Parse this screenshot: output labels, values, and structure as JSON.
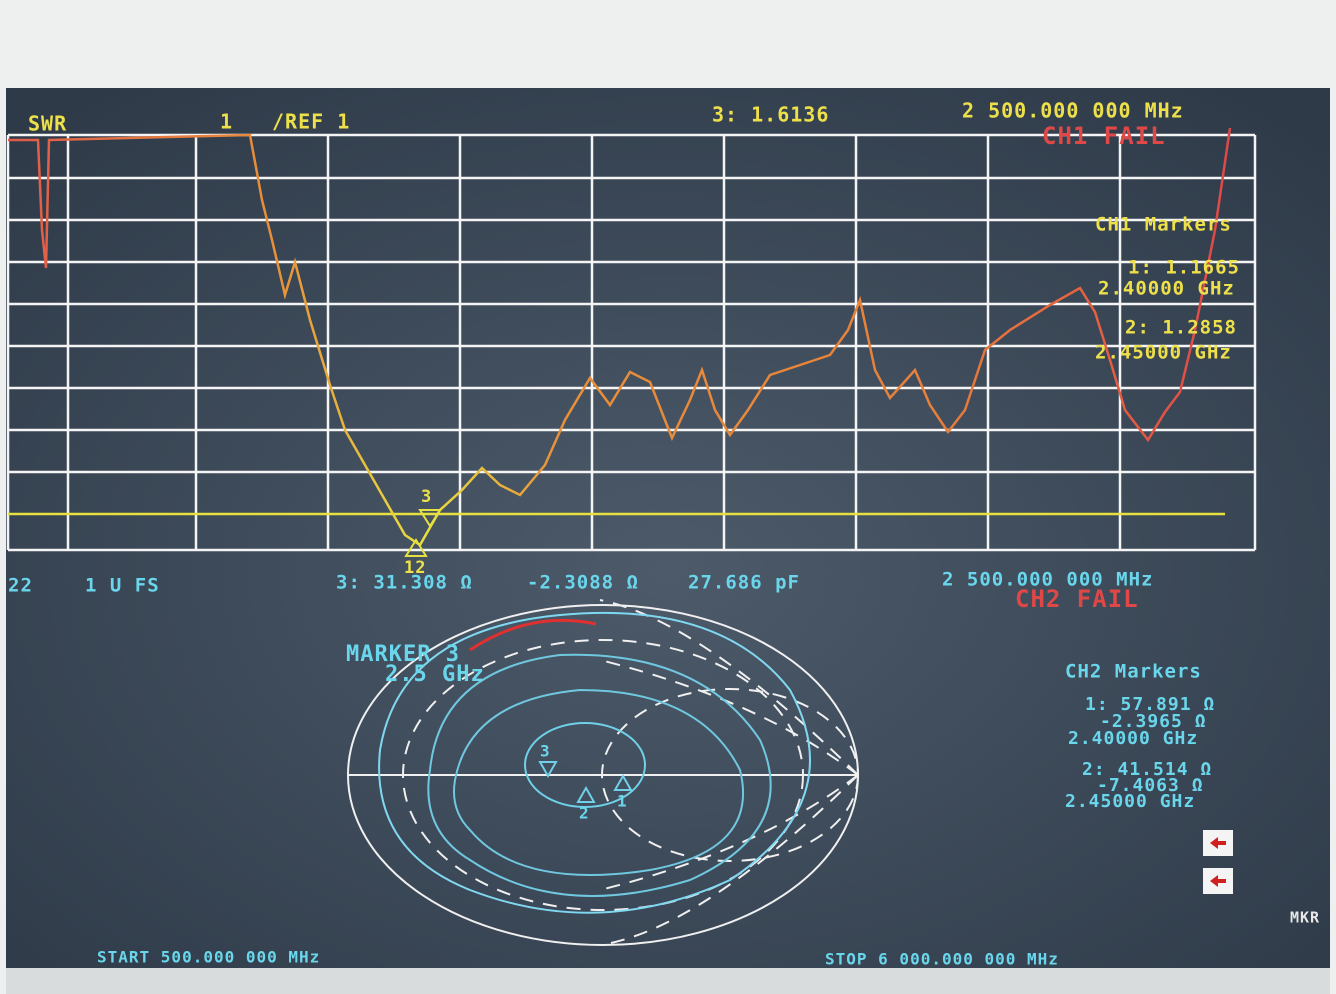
{
  "channel1": {
    "format": "SWR",
    "scale": "1",
    "reference": "/REF 1",
    "active_marker": "3: 1.6136",
    "frequency": "2 500.000 000 MHz",
    "status": "CH1 FAIL",
    "markers_title": "CH1 Markers",
    "markers": [
      {
        "label": "1: 1.1665",
        "frequency": "2.40000 GHz"
      },
      {
        "label": "2: 1.2858",
        "frequency": "2.45000 GHz"
      }
    ],
    "trace_marker_labels": [
      "3",
      "12"
    ]
  },
  "channel2": {
    "format": "22",
    "scale": "1 U FS",
    "active_marker": "3: 31.308 Ω",
    "reactance": "-2.3088 Ω",
    "capacitance": "27.686 pF",
    "frequency": "2 500.000 000 MHz",
    "status": "CH2 FAIL",
    "marker_title": "MARKER 3",
    "marker_frequency": "2.5 GHz",
    "markers_title": "CH2 Markers",
    "markers": [
      {
        "resistance": "1: 57.891 Ω",
        "reactance": "-2.3965 Ω",
        "frequency": "2.40000 GHz"
      },
      {
        "resistance": "2: 41.514 Ω",
        "reactance": "-7.4063 Ω",
        "frequency": "2.45000 GHz"
      }
    ],
    "smith_marker_labels": [
      "3",
      "2",
      "1"
    ]
  },
  "footer": {
    "start": "START 500.000 000 MHz",
    "stop": "STOP 6 000.000 000 MHz",
    "softkey": "MKR"
  }
}
